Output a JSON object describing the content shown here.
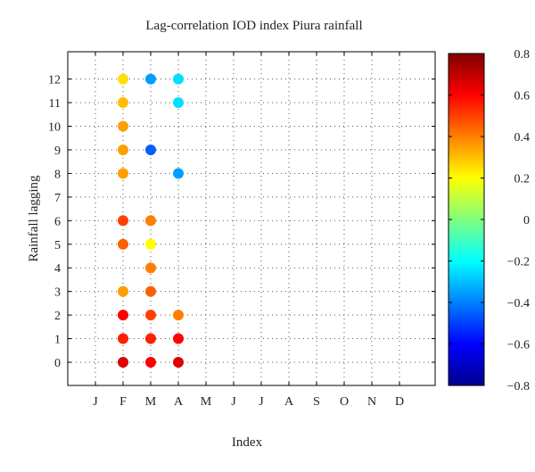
{
  "chart_data": {
    "type": "scatter",
    "title": "Lag-correlation IOD index Piura rainfall",
    "xlabel": "Index",
    "ylabel": "Rainfall lagging",
    "x_categories": [
      "J",
      "F",
      "M",
      "A",
      "M",
      "J",
      "J",
      "A",
      "S",
      "O",
      "N",
      "D"
    ],
    "y_ticks": [
      "0",
      "1",
      "2",
      "3",
      "4",
      "5",
      "6",
      "7",
      "8",
      "9",
      "10",
      "11",
      "12"
    ],
    "ylim": [
      -1.5,
      13
    ],
    "grid": "dotted",
    "colorbar": {
      "range": [
        -0.8,
        0.8
      ],
      "ticks": [
        "0.8",
        "0.6",
        "0.4",
        "0.2",
        "0",
        "−0.2",
        "−0.4",
        "−0.6",
        "−0.8"
      ],
      "colormap": "jet"
    },
    "points": [
      {
        "x": 1,
        "y": 12,
        "v": 0.25
      },
      {
        "x": 1,
        "y": 11,
        "v": 0.3
      },
      {
        "x": 1,
        "y": 10,
        "v": 0.35
      },
      {
        "x": 1,
        "y": 9,
        "v": 0.35
      },
      {
        "x": 1,
        "y": 8,
        "v": 0.35
      },
      {
        "x": 1,
        "y": 6,
        "v": 0.5
      },
      {
        "x": 1,
        "y": 5,
        "v": 0.45
      },
      {
        "x": 1,
        "y": 3,
        "v": 0.35
      },
      {
        "x": 1,
        "y": 2,
        "v": 0.6
      },
      {
        "x": 1,
        "y": 1,
        "v": 0.55
      },
      {
        "x": 1,
        "y": 0,
        "v": 0.65
      },
      {
        "x": 2,
        "y": 12,
        "v": -0.35
      },
      {
        "x": 2,
        "y": 9,
        "v": -0.45
      },
      {
        "x": 2,
        "y": 6,
        "v": 0.4
      },
      {
        "x": 2,
        "y": 5,
        "v": 0.2
      },
      {
        "x": 2,
        "y": 4,
        "v": 0.4
      },
      {
        "x": 2,
        "y": 3,
        "v": 0.45
      },
      {
        "x": 2,
        "y": 2,
        "v": 0.5
      },
      {
        "x": 2,
        "y": 1,
        "v": 0.55
      },
      {
        "x": 2,
        "y": 0,
        "v": 0.6
      },
      {
        "x": 3,
        "y": 12,
        "v": -0.25
      },
      {
        "x": 3,
        "y": 11,
        "v": -0.25
      },
      {
        "x": 3,
        "y": 8,
        "v": -0.35
      },
      {
        "x": 3,
        "y": 2,
        "v": 0.4
      },
      {
        "x": 3,
        "y": 1,
        "v": 0.6
      },
      {
        "x": 3,
        "y": 0,
        "v": 0.65
      }
    ]
  }
}
